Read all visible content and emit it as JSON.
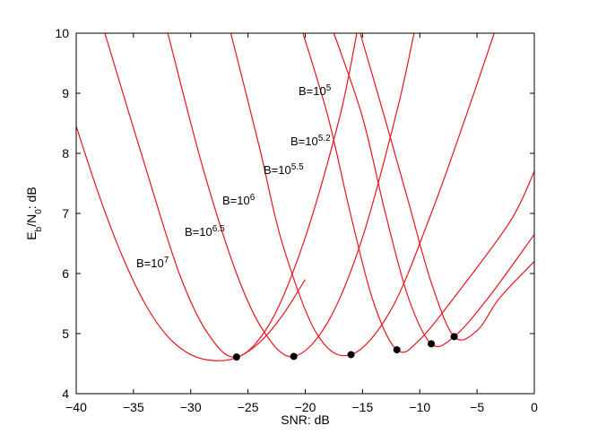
{
  "chart_data": {
    "type": "line",
    "title": "",
    "xlabel": "SNR: dB",
    "ylabel_parts": {
      "main1": "E",
      "sub1": "b",
      "main2": "/N",
      "sub2": "0",
      "tail": ": dB"
    },
    "xlim": [
      -40,
      0
    ],
    "ylim": [
      4,
      10
    ],
    "xticks": [
      -40,
      -35,
      -30,
      -25,
      -20,
      -15,
      -10,
      -5,
      0
    ],
    "yticks": [
      4,
      5,
      6,
      7,
      8,
      9,
      10
    ],
    "grid": false,
    "line_color": "#e8141d",
    "marker_color": "#000000",
    "series": [
      {
        "label_base": "B=10",
        "label_exp": "5",
        "min_x": -7,
        "min_y": 4.95,
        "points": [
          [
            -15.2,
            10
          ],
          [
            -13,
            8.55
          ],
          [
            -11,
            7.2
          ],
          [
            -9,
            5.85
          ],
          [
            -7,
            4.95
          ],
          [
            -5,
            5.05
          ],
          [
            -3,
            5.6
          ],
          [
            0,
            6.2
          ]
        ]
      },
      {
        "label_base": "B=10",
        "label_exp": "5.2",
        "min_x": -9,
        "min_y": 4.83,
        "points": [
          [
            -17.5,
            10
          ],
          [
            -15,
            8.6
          ],
          [
            -13,
            7.0
          ],
          [
            -11,
            5.6
          ],
          [
            -9,
            4.83
          ],
          [
            -7,
            4.95
          ],
          [
            -4,
            5.6
          ],
          [
            0,
            6.65
          ]
        ]
      },
      {
        "label_base": "B=10",
        "label_exp": "5.5",
        "min_x": -12,
        "min_y": 4.73,
        "points": [
          [
            -20.2,
            10
          ],
          [
            -18,
            8.6
          ],
          [
            -16,
            6.95
          ],
          [
            -14,
            5.5
          ],
          [
            -12,
            4.73
          ],
          [
            -10,
            4.9
          ],
          [
            -6,
            5.85
          ],
          [
            -2,
            6.9
          ],
          [
            0,
            7.7
          ]
        ]
      },
      {
        "label_base": "B=10",
        "label_exp": "6",
        "min_x": -16,
        "min_y": 4.65,
        "points": [
          [
            -26.5,
            10
          ],
          [
            -24,
            8.1
          ],
          [
            -22,
            6.5
          ],
          [
            -19,
            5.0
          ],
          [
            -16,
            4.65
          ],
          [
            -12.5,
            5.4
          ],
          [
            -9,
            7.0
          ],
          [
            -6,
            8.6
          ],
          [
            -3.5,
            10
          ]
        ]
      },
      {
        "label_base": "B=10",
        "label_exp": "6.5",
        "min_x": -21,
        "min_y": 4.62,
        "points": [
          [
            -32,
            10
          ],
          [
            -29,
            7.8
          ],
          [
            -26,
            6.0
          ],
          [
            -23.5,
            5.0
          ],
          [
            -21,
            4.62
          ],
          [
            -18,
            5.2
          ],
          [
            -15,
            6.6
          ],
          [
            -12,
            8.7
          ],
          [
            -10.5,
            10
          ]
        ]
      },
      {
        "label_base": "B=10",
        "label_exp": "7",
        "min_x": -26,
        "min_y": 4.61,
        "points": [
          [
            -37.5,
            10
          ],
          [
            -34,
            7.8
          ],
          [
            -31,
            6.0
          ],
          [
            -28.5,
            5.0
          ],
          [
            -26,
            4.61
          ],
          [
            -23,
            5.2
          ],
          [
            -20,
            6.6
          ],
          [
            -17,
            8.6
          ],
          [
            -15.5,
            10
          ]
        ]
      },
      {
        "label_base": "",
        "label_exp": "",
        "min_x": null,
        "min_y": null,
        "points": [
          [
            -40,
            8.45
          ],
          [
            -38,
            7.3
          ],
          [
            -36,
            6.3
          ],
          [
            -34,
            5.5
          ],
          [
            -32,
            4.95
          ],
          [
            -30,
            4.65
          ],
          [
            -28,
            4.55
          ],
          [
            -26,
            4.6
          ],
          [
            -24,
            4.85
          ],
          [
            -22,
            5.3
          ],
          [
            -20,
            5.9
          ]
        ]
      }
    ]
  }
}
